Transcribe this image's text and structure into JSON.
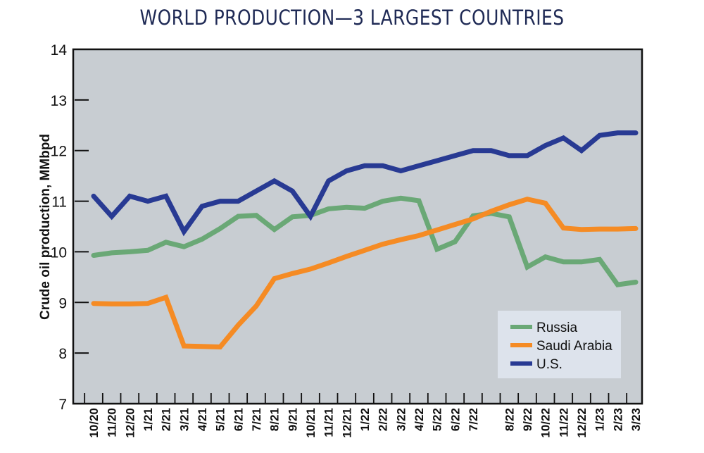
{
  "chart_data": {
    "type": "line",
    "title": "WORLD PRODUCTION—3 LARGEST COUNTRIES",
    "xlabel": "",
    "ylabel": "Crude oil production, MMbpd",
    "ylim": [
      7,
      14
    ],
    "yticks": [
      7,
      8,
      9,
      10,
      11,
      12,
      13,
      14
    ],
    "grid": false,
    "legend_position": "bottom-right",
    "categories": [
      "10/20",
      "11/20",
      "12/20",
      "1/21",
      "2/21",
      "3/21",
      "4/21",
      "5/21",
      "6/21",
      "7/21",
      "8/21",
      "9/21",
      "10/21",
      "11/21",
      "12/21",
      "1/22",
      "2/22",
      "3/22",
      "4/22",
      "5/22",
      "6/22",
      "7/22",
      "",
      "8/22",
      "9/22",
      "10/22",
      "11/22",
      "12/22",
      "1/23",
      "2/23",
      "3/23"
    ],
    "series": [
      {
        "name": "Russia",
        "color": "#6aa876",
        "values": [
          9.93,
          9.98,
          10.0,
          10.03,
          10.19,
          10.1,
          10.25,
          10.46,
          10.7,
          10.72,
          10.44,
          10.69,
          10.72,
          10.85,
          10.88,
          10.86,
          11.0,
          11.06,
          11.01,
          10.05,
          10.2,
          10.71,
          10.76,
          10.69,
          9.7,
          9.9,
          9.8,
          9.8,
          9.85,
          9.35,
          9.4
        ]
      },
      {
        "name": "Saudi Arabia",
        "color": "#f58b24",
        "values": [
          8.98,
          8.97,
          8.97,
          8.98,
          9.1,
          8.14,
          8.13,
          8.12,
          8.55,
          8.93,
          9.47,
          9.57,
          9.66,
          9.78,
          9.91,
          10.03,
          10.15,
          10.24,
          10.32,
          10.43,
          10.54,
          10.65,
          10.8,
          10.93,
          11.04,
          10.96,
          10.47,
          10.44,
          10.45,
          10.45,
          10.46
        ]
      },
      {
        "name": "U.S.",
        "color": "#283a93",
        "values": [
          11.1,
          10.7,
          11.1,
          11.0,
          11.1,
          10.4,
          10.9,
          11.0,
          11.0,
          11.2,
          11.4,
          11.2,
          10.7,
          11.4,
          11.6,
          11.7,
          11.7,
          11.6,
          11.7,
          11.8,
          11.9,
          12.0,
          12.0,
          11.9,
          11.9,
          12.1,
          12.25,
          12.0,
          12.3,
          12.35,
          12.35
        ]
      }
    ]
  },
  "colors": {
    "plot_background": "#c8cdd2",
    "legend_background": "#dde3ec",
    "title": "#1f2a55"
  }
}
